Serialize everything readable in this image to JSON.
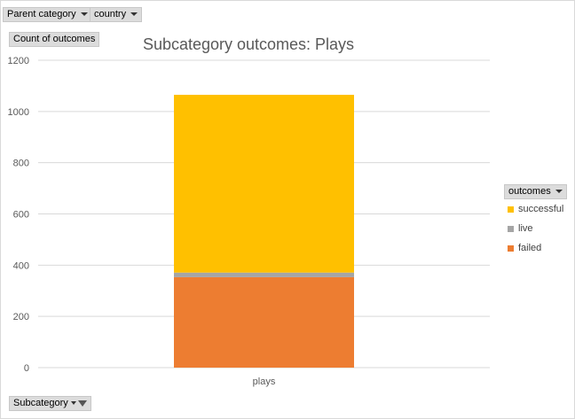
{
  "filters": {
    "parent_category": "Parent category",
    "country": "country",
    "subcategory": "Subcategory"
  },
  "value_field": "Count of outcomes",
  "legend_field": "outcomes",
  "colors": {
    "successful": "#FFC000",
    "live": "#A5A5A5",
    "failed": "#ED7D31",
    "grid": "#d9d9d9"
  },
  "chart_data": {
    "type": "bar",
    "stacked": true,
    "title": "Subcategory outcomes:  Plays",
    "categories": [
      "plays"
    ],
    "series": [
      {
        "name": "failed",
        "values": [
          353
        ]
      },
      {
        "name": "live",
        "values": [
          18
        ]
      },
      {
        "name": "successful",
        "values": [
          694
        ]
      }
    ],
    "legend_order": [
      "successful",
      "live",
      "failed"
    ],
    "ylim": [
      0,
      1200
    ],
    "yticks": [
      0,
      200,
      400,
      600,
      800,
      1000,
      1200
    ],
    "grid": true,
    "legend_position": "right"
  }
}
